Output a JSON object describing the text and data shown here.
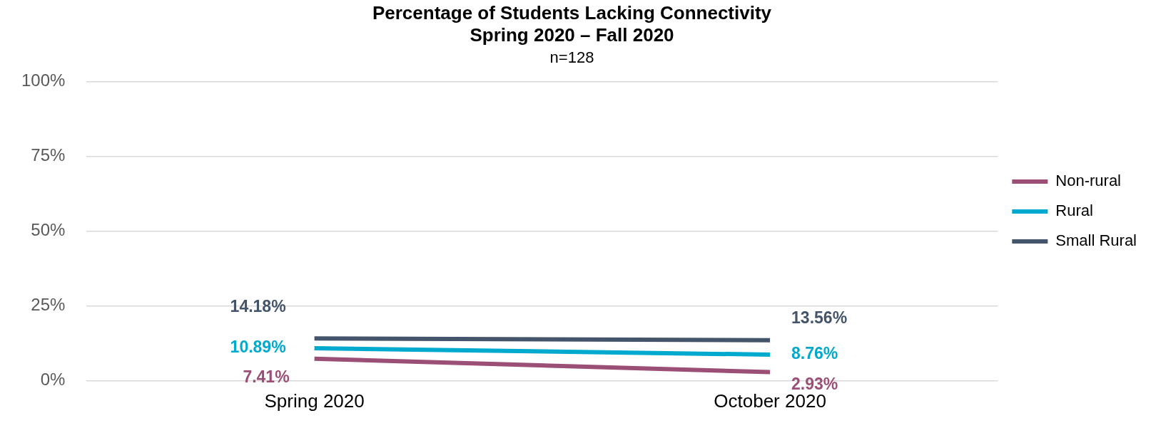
{
  "chart_data": {
    "type": "line",
    "title": "Percentage of Students Lacking Connectivity\nSpring 2020 – Fall 2020",
    "subtitle": "n=128",
    "categories": [
      "Spring 2020",
      "October 2020"
    ],
    "series": [
      {
        "name": "Non-rural",
        "color": "#9b4f76",
        "values": [
          7.41,
          2.93
        ],
        "value_labels": [
          "7.41%",
          "2.93%"
        ]
      },
      {
        "name": "Rural",
        "color": "#00a9ce",
        "values": [
          10.89,
          8.76
        ],
        "value_labels": [
          "10.89%",
          "8.76%"
        ]
      },
      {
        "name": "Small Rural",
        "color": "#44546a",
        "values": [
          14.18,
          13.56
        ],
        "value_labels": [
          "14.18%",
          "13.56%"
        ]
      }
    ],
    "ylim": [
      0,
      100
    ],
    "yticks": [
      {
        "value": 0,
        "label": "0%"
      },
      {
        "value": 25,
        "label": "25%"
      },
      {
        "value": 50,
        "label": "50%"
      },
      {
        "value": 75,
        "label": "75%"
      },
      {
        "value": 100,
        "label": "100%"
      }
    ],
    "grid": "y",
    "legend": "right",
    "marker": "none",
    "line_style": "solid"
  }
}
